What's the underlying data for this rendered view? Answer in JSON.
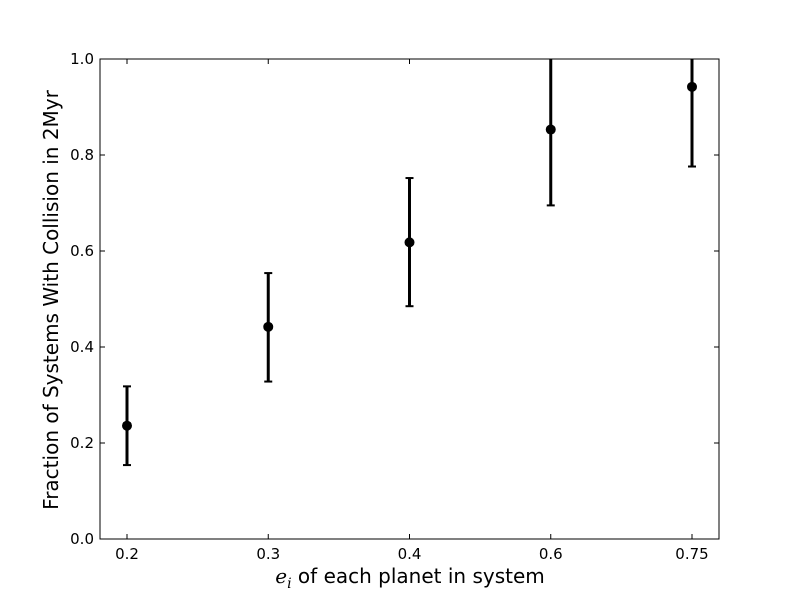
{
  "chart_data": {
    "type": "scatter",
    "title": "",
    "xlabel_math": "e",
    "xlabel_math_sub": "i",
    "xlabel_text": " of each planet in system",
    "ylabel": "Fraction of Systems With Collision in 2Myr",
    "categories": [
      "0.2",
      "0.3",
      "0.4",
      "0.6",
      "0.75"
    ],
    "values": [
      0.236,
      0.442,
      0.618,
      0.853,
      0.942
    ],
    "err_low": [
      0.154,
      0.328,
      0.485,
      0.695,
      0.776
    ],
    "err_high": [
      0.318,
      0.554,
      0.752,
      1.0,
      1.0
    ],
    "ylim": [
      0.0,
      1.0
    ],
    "yticks": [
      "0.0",
      "0.2",
      "0.4",
      "0.6",
      "0.8",
      "1.0"
    ],
    "grid": false,
    "legend": false,
    "marker_color": "#000000"
  }
}
